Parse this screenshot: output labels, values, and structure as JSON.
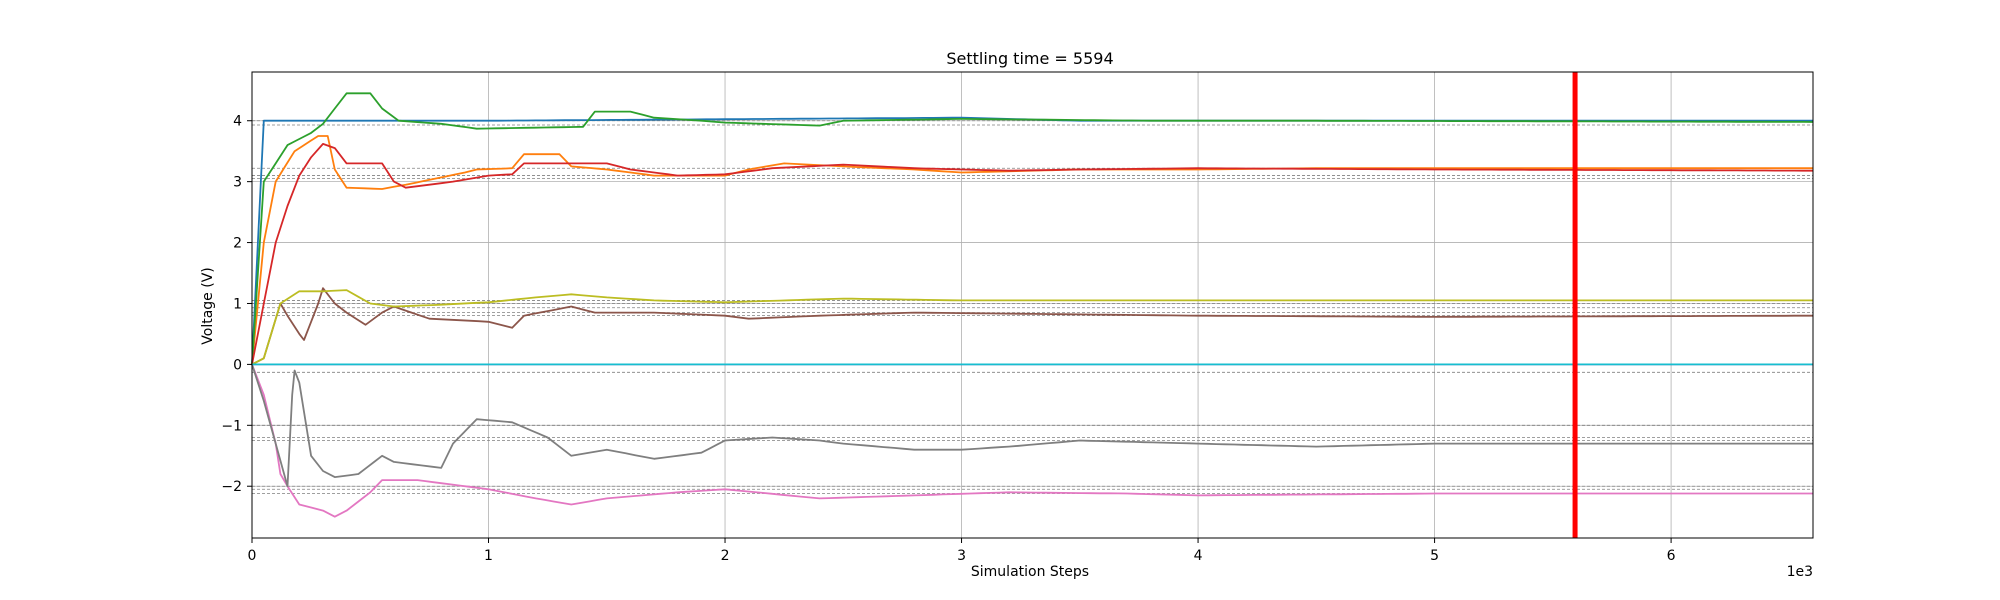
{
  "chart_data": {
    "type": "line",
    "title": "Settling time = 5594",
    "xlabel": "Simulation Steps",
    "ylabel": "Voltage (V)",
    "x_scale_label": "1e3",
    "xlim": [
      0,
      6.6
    ],
    "ylim": [
      -2.85,
      4.8
    ],
    "x_ticks": [
      0,
      1,
      2,
      3,
      4,
      5,
      6
    ],
    "y_ticks": [
      -2,
      -1,
      0,
      1,
      2,
      3,
      4
    ],
    "x_tick_labels": [
      "0",
      "1",
      "2",
      "3",
      "4",
      "5",
      "6"
    ],
    "y_tick_labels": [
      "−2",
      "−1",
      "0",
      "1",
      "2",
      "3",
      "4"
    ],
    "grid": true,
    "settling_line": {
      "x": 5.594,
      "color": "#ff0000"
    },
    "reference_levels": [
      4.0,
      3.93,
      3.22,
      3.1,
      3.05,
      1.05,
      1.0,
      0.93,
      0.85,
      0.8,
      -0.13,
      -1.0,
      -1.2,
      -1.25,
      -2.0,
      -2.05,
      -2.12
    ],
    "series": [
      {
        "color": "#1f77b4",
        "points": [
          [
            0,
            0
          ],
          [
            0.05,
            4.0
          ],
          [
            1.0,
            4.0
          ],
          [
            3.0,
            4.05
          ],
          [
            3.5,
            4.0
          ],
          [
            6.6,
            4.0
          ]
        ]
      },
      {
        "color": "#ff7f0e",
        "points": [
          [
            0,
            0
          ],
          [
            0.05,
            2.0
          ],
          [
            0.1,
            3.0
          ],
          [
            0.18,
            3.5
          ],
          [
            0.28,
            3.75
          ],
          [
            0.32,
            3.75
          ],
          [
            0.35,
            3.2
          ],
          [
            0.4,
            2.9
          ],
          [
            0.55,
            2.88
          ],
          [
            0.65,
            2.95
          ],
          [
            0.9,
            3.15
          ],
          [
            0.95,
            3.2
          ],
          [
            1.1,
            3.22
          ],
          [
            1.15,
            3.45
          ],
          [
            1.3,
            3.45
          ],
          [
            1.35,
            3.25
          ],
          [
            1.5,
            3.2
          ],
          [
            1.7,
            3.1
          ],
          [
            2.0,
            3.1
          ],
          [
            2.1,
            3.2
          ],
          [
            2.25,
            3.3
          ],
          [
            2.5,
            3.25
          ],
          [
            2.8,
            3.2
          ],
          [
            3.0,
            3.15
          ],
          [
            3.5,
            3.2
          ],
          [
            4.0,
            3.2
          ],
          [
            4.5,
            3.22
          ],
          [
            6.6,
            3.22
          ]
        ]
      },
      {
        "color": "#2ca02c",
        "points": [
          [
            0,
            0
          ],
          [
            0.05,
            3.0
          ],
          [
            0.1,
            3.3
          ],
          [
            0.15,
            3.6
          ],
          [
            0.25,
            3.8
          ],
          [
            0.3,
            3.95
          ],
          [
            0.35,
            4.2
          ],
          [
            0.4,
            4.45
          ],
          [
            0.5,
            4.45
          ],
          [
            0.55,
            4.2
          ],
          [
            0.62,
            4.0
          ],
          [
            0.8,
            3.95
          ],
          [
            0.95,
            3.87
          ],
          [
            1.4,
            3.9
          ],
          [
            1.45,
            4.15
          ],
          [
            1.6,
            4.15
          ],
          [
            1.7,
            4.05
          ],
          [
            1.9,
            4.0
          ],
          [
            2.0,
            3.97
          ],
          [
            2.4,
            3.92
          ],
          [
            2.5,
            4.0
          ],
          [
            3.0,
            4.03
          ],
          [
            3.8,
            4.0
          ],
          [
            4.5,
            4.0
          ],
          [
            6.6,
            3.98
          ]
        ]
      },
      {
        "color": "#d62728",
        "points": [
          [
            0,
            0
          ],
          [
            0.05,
            1.0
          ],
          [
            0.1,
            2.0
          ],
          [
            0.15,
            2.6
          ],
          [
            0.2,
            3.1
          ],
          [
            0.25,
            3.4
          ],
          [
            0.3,
            3.62
          ],
          [
            0.35,
            3.55
          ],
          [
            0.4,
            3.3
          ],
          [
            0.55,
            3.3
          ],
          [
            0.6,
            3.0
          ],
          [
            0.65,
            2.9
          ],
          [
            0.75,
            2.95
          ],
          [
            0.85,
            3.0
          ],
          [
            1.0,
            3.1
          ],
          [
            1.1,
            3.12
          ],
          [
            1.15,
            3.3
          ],
          [
            1.5,
            3.3
          ],
          [
            1.6,
            3.2
          ],
          [
            1.8,
            3.1
          ],
          [
            2.0,
            3.12
          ],
          [
            2.2,
            3.22
          ],
          [
            2.5,
            3.28
          ],
          [
            2.8,
            3.22
          ],
          [
            3.2,
            3.18
          ],
          [
            3.5,
            3.2
          ],
          [
            4.0,
            3.22
          ],
          [
            5.0,
            3.2
          ],
          [
            6.6,
            3.18
          ]
        ]
      },
      {
        "color": "#9467bd",
        "points": [
          [
            0,
            0
          ],
          [
            0.3,
            0.0
          ],
          [
            6.6,
            0.0
          ]
        ]
      },
      {
        "color": "#8c564b",
        "points": [
          [
            0,
            0
          ],
          [
            0.05,
            0.1
          ],
          [
            0.12,
            1.0
          ],
          [
            0.15,
            0.8
          ],
          [
            0.2,
            0.5
          ],
          [
            0.22,
            0.4
          ],
          [
            0.28,
            1.0
          ],
          [
            0.3,
            1.25
          ],
          [
            0.35,
            1.0
          ],
          [
            0.4,
            0.85
          ],
          [
            0.48,
            0.65
          ],
          [
            0.55,
            0.85
          ],
          [
            0.6,
            0.95
          ],
          [
            0.75,
            0.75
          ],
          [
            1.0,
            0.7
          ],
          [
            1.1,
            0.6
          ],
          [
            1.15,
            0.8
          ],
          [
            1.35,
            0.95
          ],
          [
            1.45,
            0.85
          ],
          [
            1.7,
            0.85
          ],
          [
            2.0,
            0.8
          ],
          [
            2.1,
            0.75
          ],
          [
            2.4,
            0.8
          ],
          [
            2.8,
            0.85
          ],
          [
            3.5,
            0.82
          ],
          [
            4.0,
            0.8
          ],
          [
            5.0,
            0.78
          ],
          [
            6.6,
            0.8
          ]
        ]
      },
      {
        "color": "#e377c2",
        "points": [
          [
            0,
            0
          ],
          [
            0.05,
            -0.5
          ],
          [
            0.1,
            -1.3
          ],
          [
            0.12,
            -1.8
          ],
          [
            0.15,
            -2.0
          ],
          [
            0.2,
            -2.3
          ],
          [
            0.3,
            -2.4
          ],
          [
            0.35,
            -2.5
          ],
          [
            0.4,
            -2.4
          ],
          [
            0.5,
            -2.1
          ],
          [
            0.55,
            -1.9
          ],
          [
            0.7,
            -1.9
          ],
          [
            0.8,
            -1.95
          ],
          [
            1.0,
            -2.05
          ],
          [
            1.2,
            -2.2
          ],
          [
            1.35,
            -2.3
          ],
          [
            1.5,
            -2.2
          ],
          [
            1.8,
            -2.1
          ],
          [
            2.0,
            -2.05
          ],
          [
            2.4,
            -2.2
          ],
          [
            2.8,
            -2.15
          ],
          [
            3.2,
            -2.1
          ],
          [
            3.7,
            -2.12
          ],
          [
            4.0,
            -2.15
          ],
          [
            5.0,
            -2.12
          ],
          [
            6.6,
            -2.12
          ]
        ]
      },
      {
        "color": "#7f7f7f",
        "points": [
          [
            0,
            0
          ],
          [
            0.05,
            -0.6
          ],
          [
            0.1,
            -1.3
          ],
          [
            0.15,
            -2.0
          ],
          [
            0.17,
            -0.5
          ],
          [
            0.18,
            -0.1
          ],
          [
            0.2,
            -0.3
          ],
          [
            0.25,
            -1.5
          ],
          [
            0.3,
            -1.75
          ],
          [
            0.35,
            -1.85
          ],
          [
            0.45,
            -1.8
          ],
          [
            0.55,
            -1.5
          ],
          [
            0.6,
            -1.6
          ],
          [
            0.8,
            -1.7
          ],
          [
            0.85,
            -1.3
          ],
          [
            0.95,
            -0.9
          ],
          [
            1.1,
            -0.95
          ],
          [
            1.25,
            -1.2
          ],
          [
            1.35,
            -1.5
          ],
          [
            1.5,
            -1.4
          ],
          [
            1.7,
            -1.55
          ],
          [
            1.9,
            -1.45
          ],
          [
            2.0,
            -1.25
          ],
          [
            2.2,
            -1.2
          ],
          [
            2.4,
            -1.25
          ],
          [
            2.5,
            -1.3
          ],
          [
            2.8,
            -1.4
          ],
          [
            3.0,
            -1.4
          ],
          [
            3.2,
            -1.35
          ],
          [
            3.5,
            -1.25
          ],
          [
            4.0,
            -1.3
          ],
          [
            4.5,
            -1.35
          ],
          [
            5.0,
            -1.3
          ],
          [
            6.6,
            -1.3
          ]
        ]
      },
      {
        "color": "#bcbd22",
        "points": [
          [
            0,
            0
          ],
          [
            0.05,
            0.1
          ],
          [
            0.12,
            1.0
          ],
          [
            0.2,
            1.2
          ],
          [
            0.3,
            1.2
          ],
          [
            0.4,
            1.22
          ],
          [
            0.5,
            1.0
          ],
          [
            0.6,
            0.95
          ],
          [
            0.8,
            0.98
          ],
          [
            1.0,
            1.02
          ],
          [
            1.2,
            1.1
          ],
          [
            1.35,
            1.15
          ],
          [
            1.5,
            1.1
          ],
          [
            1.7,
            1.05
          ],
          [
            2.0,
            1.02
          ],
          [
            2.5,
            1.08
          ],
          [
            3.0,
            1.05
          ],
          [
            4.0,
            1.05
          ],
          [
            5.0,
            1.05
          ],
          [
            6.6,
            1.05
          ]
        ]
      },
      {
        "color": "#17becf",
        "points": [
          [
            0,
            0
          ],
          [
            6.6,
            0.0
          ]
        ]
      }
    ]
  }
}
